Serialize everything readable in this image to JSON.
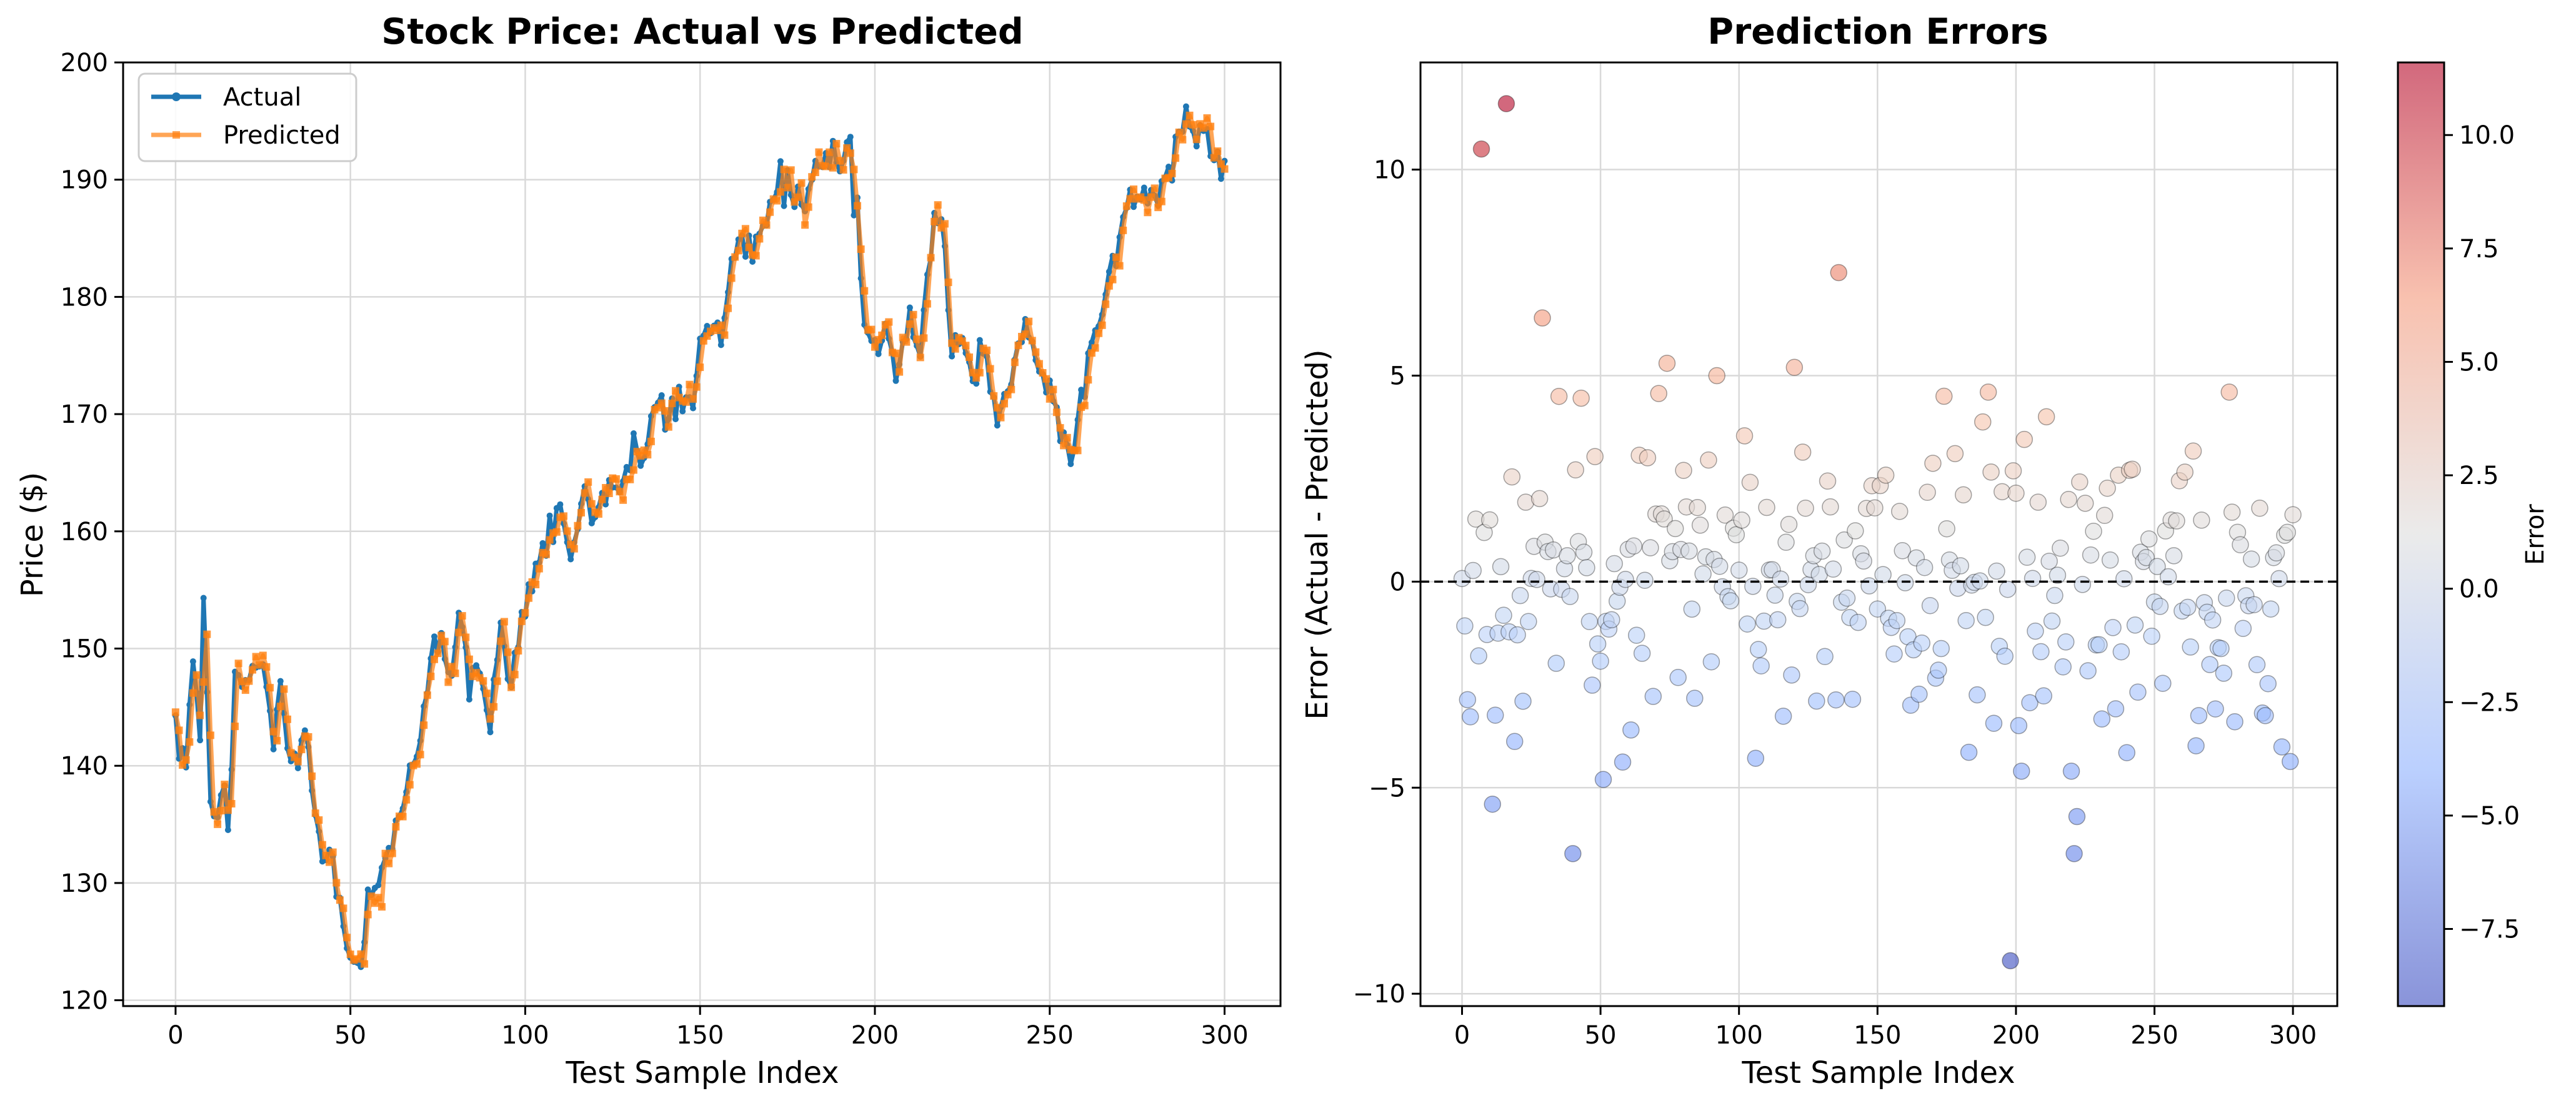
{
  "colors": {
    "actual": "#1f77b4",
    "predicted": "#ff7f0e",
    "colormap": "coolwarm",
    "zero_line": "#000000"
  },
  "chart_data": [
    {
      "type": "line",
      "title": "Stock Price: Actual vs Predicted",
      "xlabel": "Test Sample Index",
      "ylabel": "Price ($)",
      "xlim": [
        -15,
        316
      ],
      "ylim": [
        119.5,
        200
      ],
      "xticks": [
        0,
        50,
        100,
        150,
        200,
        250,
        300
      ],
      "yticks": [
        120,
        130,
        140,
        150,
        160,
        170,
        180,
        190,
        200
      ],
      "grid": true,
      "legend": "top-left",
      "anchors": [
        [
          0,
          141.5
        ],
        [
          3,
          141
        ],
        [
          5,
          149
        ],
        [
          7,
          143
        ],
        [
          8,
          153
        ],
        [
          10,
          137
        ],
        [
          14,
          137
        ],
        [
          15,
          133
        ],
        [
          17,
          147
        ],
        [
          22,
          148
        ],
        [
          25,
          149
        ],
        [
          28,
          142
        ],
        [
          30,
          146
        ],
        [
          33,
          140
        ],
        [
          37,
          143
        ],
        [
          40,
          136
        ],
        [
          42,
          131
        ],
        [
          45,
          133
        ],
        [
          48,
          126
        ],
        [
          50,
          124
        ],
        [
          53,
          123
        ],
        [
          55,
          128
        ],
        [
          60,
          131
        ],
        [
          63,
          134
        ],
        [
          67,
          140
        ],
        [
          70,
          143
        ],
        [
          73,
          150
        ],
        [
          76,
          152
        ],
        [
          79,
          147
        ],
        [
          81,
          152
        ],
        [
          84,
          147
        ],
        [
          88,
          148
        ],
        [
          90,
          143
        ],
        [
          93,
          151
        ],
        [
          96,
          148
        ],
        [
          99,
          153
        ],
        [
          103,
          157
        ],
        [
          107,
          160
        ],
        [
          110,
          163
        ],
        [
          113,
          158
        ],
        [
          117,
          163
        ],
        [
          120,
          161
        ],
        [
          124,
          165
        ],
        [
          128,
          164
        ],
        [
          131,
          167
        ],
        [
          134,
          165
        ],
        [
          137,
          171
        ],
        [
          140,
          170
        ],
        [
          144,
          171
        ],
        [
          147,
          171
        ],
        [
          150,
          175
        ],
        [
          153,
          178
        ],
        [
          156,
          177
        ],
        [
          159,
          182
        ],
        [
          162,
          184
        ],
        [
          166,
          185
        ],
        [
          170,
          188
        ],
        [
          173,
          191
        ],
        [
          176,
          189
        ],
        [
          180,
          187
        ],
        [
          183,
          191
        ],
        [
          186,
          192
        ],
        [
          190,
          191
        ],
        [
          193,
          194
        ],
        [
          195,
          188
        ],
        [
          197,
          177
        ],
        [
          200,
          176
        ],
        [
          203,
          177
        ],
        [
          206,
          173
        ],
        [
          210,
          178
        ],
        [
          213,
          175
        ],
        [
          217,
          187
        ],
        [
          219,
          188
        ],
        [
          222,
          175
        ],
        [
          226,
          176
        ],
        [
          229,
          173
        ],
        [
          232,
          176
        ],
        [
          235,
          169
        ],
        [
          238,
          172
        ],
        [
          241,
          176
        ],
        [
          244,
          178
        ],
        [
          247,
          173
        ],
        [
          250,
          172
        ],
        [
          253,
          168
        ],
        [
          256,
          165
        ],
        [
          258,
          169
        ],
        [
          261,
          175
        ],
        [
          264,
          178
        ],
        [
          267,
          182
        ],
        [
          270,
          185
        ],
        [
          273,
          189
        ],
        [
          276,
          188
        ],
        [
          280,
          189
        ],
        [
          283,
          189
        ],
        [
          286,
          193
        ],
        [
          289,
          196
        ],
        [
          292,
          195
        ],
        [
          295,
          193
        ],
        [
          300,
          191
        ]
      ],
      "series": [
        {
          "name": "Actual",
          "marker": "circle"
        },
        {
          "name": "Predicted",
          "marker": "square"
        }
      ]
    },
    {
      "type": "scatter",
      "title": "Prediction Errors",
      "xlabel": "Test Sample Index",
      "ylabel": "Error (Actual - Predicted)",
      "xlim": [
        -15,
        316
      ],
      "ylim": [
        -10.3,
        12.6
      ],
      "xticks": [
        0,
        50,
        100,
        150,
        200,
        250,
        300
      ],
      "yticks": [
        -10,
        -5,
        0,
        5,
        10
      ],
      "reference_line": 0,
      "grid": true,
      "colorbar": {
        "label": "Error",
        "range": [
          -9.2,
          11.6
        ],
        "ticks": [
          -7.5,
          -5.0,
          -2.5,
          0.0,
          2.5,
          5.0,
          7.5,
          10.0
        ],
        "tick_labels": [
          "−7.5",
          "−5.0",
          "−2.5",
          "0.0",
          "2.5",
          "5.0",
          "7.5",
          "10.0"
        ]
      },
      "notable_points": [
        {
          "x": 7,
          "y": 10.5
        },
        {
          "x": 16,
          "y": 11.6
        },
        {
          "x": 29,
          "y": 6.4
        },
        {
          "x": 136,
          "y": 7.5
        },
        {
          "x": 198,
          "y": -9.2
        },
        {
          "x": 11,
          "y": -6.6
        },
        {
          "x": 40,
          "y": -6.6
        },
        {
          "x": 221,
          "y": -6.6
        },
        {
          "x": 222,
          "y": -5.7
        },
        {
          "x": 11,
          "y": -5.4
        },
        {
          "x": 51,
          "y": -4.8
        },
        {
          "x": 74,
          "y": 5.3
        },
        {
          "x": 92,
          "y": 5.0
        },
        {
          "x": 120,
          "y": 5.2
        },
        {
          "x": 174,
          "y": 4.5
        },
        {
          "x": 211,
          "y": 4.0
        }
      ],
      "n_points": 301
    }
  ]
}
